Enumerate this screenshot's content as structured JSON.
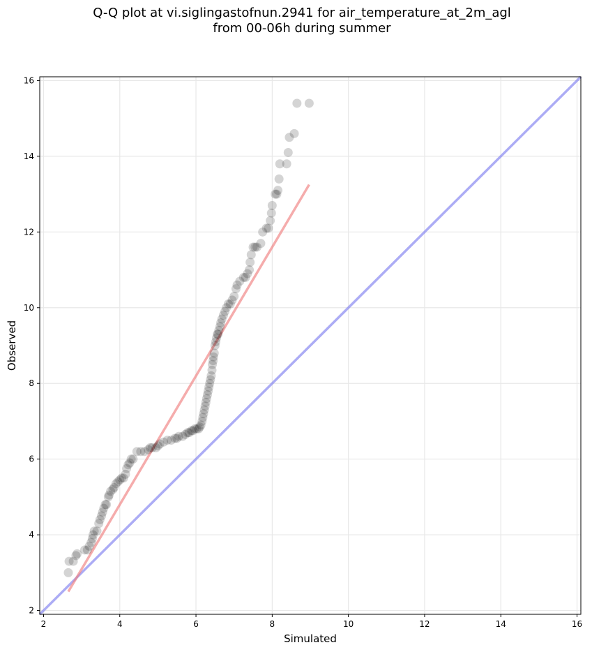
{
  "chart_data": {
    "type": "scatter",
    "title_line1": "Q-Q plot at vi.siglingastofnun.2941 for air_temperature_at_2m_agl",
    "title_line2": "from 00-06h during summer",
    "xlabel": "Simulated",
    "ylabel": "Observed",
    "xlim": [
      1.9,
      16.1
    ],
    "ylim": [
      1.9,
      16.1
    ],
    "xticks": [
      2,
      4,
      6,
      8,
      10,
      12,
      14,
      16
    ],
    "yticks": [
      2,
      4,
      6,
      8,
      10,
      12,
      14,
      16
    ],
    "x_tick_labels": [
      "2",
      "4",
      "6",
      "8",
      "10",
      "12",
      "14",
      "16"
    ],
    "y_tick_labels": [
      "2",
      "4",
      "6",
      "8",
      "10",
      "12",
      "14",
      "16"
    ],
    "grid": true,
    "colors": {
      "points": "#000000",
      "fit_line": "#f08080",
      "identity_line": "#8080f0",
      "grid": "#e8e8e8"
    },
    "fit_line": {
      "x": [
        2.65,
        8.97
      ],
      "y": [
        2.5,
        13.25
      ]
    },
    "identity_line": {
      "x": [
        1.9,
        16.1
      ],
      "y": [
        1.9,
        16.1
      ]
    },
    "points": [
      [
        2.65,
        3.0
      ],
      [
        2.67,
        3.3
      ],
      [
        2.78,
        3.3
      ],
      [
        2.85,
        3.45
      ],
      [
        2.88,
        3.5
      ],
      [
        3.08,
        3.6
      ],
      [
        3.15,
        3.6
      ],
      [
        3.2,
        3.7
      ],
      [
        3.25,
        3.8
      ],
      [
        3.28,
        3.9
      ],
      [
        3.3,
        4.0
      ],
      [
        3.33,
        4.1
      ],
      [
        3.4,
        4.1
      ],
      [
        3.45,
        4.3
      ],
      [
        3.48,
        4.4
      ],
      [
        3.52,
        4.5
      ],
      [
        3.55,
        4.6
      ],
      [
        3.58,
        4.7
      ],
      [
        3.62,
        4.8
      ],
      [
        3.65,
        4.8
      ],
      [
        3.7,
        5.0
      ],
      [
        3.72,
        5.05
      ],
      [
        3.76,
        5.15
      ],
      [
        3.82,
        5.2
      ],
      [
        3.85,
        5.25
      ],
      [
        3.9,
        5.35
      ],
      [
        3.95,
        5.4
      ],
      [
        4.0,
        5.45
      ],
      [
        4.05,
        5.5
      ],
      [
        4.1,
        5.5
      ],
      [
        4.15,
        5.6
      ],
      [
        4.18,
        5.75
      ],
      [
        4.22,
        5.85
      ],
      [
        4.26,
        5.9
      ],
      [
        4.3,
        6.0
      ],
      [
        4.35,
        6.0
      ],
      [
        4.45,
        6.2
      ],
      [
        4.55,
        6.2
      ],
      [
        4.65,
        6.2
      ],
      [
        4.75,
        6.25
      ],
      [
        4.8,
        6.3
      ],
      [
        4.85,
        6.3
      ],
      [
        4.95,
        6.3
      ],
      [
        5.0,
        6.35
      ],
      [
        5.05,
        6.4
      ],
      [
        5.15,
        6.45
      ],
      [
        5.25,
        6.5
      ],
      [
        5.35,
        6.5
      ],
      [
        5.45,
        6.55
      ],
      [
        5.5,
        6.55
      ],
      [
        5.55,
        6.6
      ],
      [
        5.65,
        6.6
      ],
      [
        5.72,
        6.65
      ],
      [
        5.78,
        6.7
      ],
      [
        5.82,
        6.7
      ],
      [
        5.88,
        6.75
      ],
      [
        5.92,
        6.75
      ],
      [
        5.97,
        6.8
      ],
      [
        6.02,
        6.8
      ],
      [
        6.07,
        6.8
      ],
      [
        6.1,
        6.85
      ],
      [
        6.13,
        6.9
      ],
      [
        6.16,
        7.0
      ],
      [
        6.18,
        7.1
      ],
      [
        6.2,
        7.2
      ],
      [
        6.22,
        7.3
      ],
      [
        6.24,
        7.4
      ],
      [
        6.26,
        7.5
      ],
      [
        6.28,
        7.6
      ],
      [
        6.3,
        7.7
      ],
      [
        6.32,
        7.8
      ],
      [
        6.34,
        7.9
      ],
      [
        6.36,
        8.0
      ],
      [
        6.38,
        8.1
      ],
      [
        6.4,
        8.2
      ],
      [
        6.42,
        8.35
      ],
      [
        6.43,
        8.5
      ],
      [
        6.45,
        8.6
      ],
      [
        6.46,
        8.7
      ],
      [
        6.48,
        8.8
      ],
      [
        6.5,
        9.0
      ],
      [
        6.52,
        9.1
      ],
      [
        6.54,
        9.2
      ],
      [
        6.56,
        9.3
      ],
      [
        6.58,
        9.3
      ],
      [
        6.6,
        9.4
      ],
      [
        6.63,
        9.5
      ],
      [
        6.65,
        9.6
      ],
      [
        6.68,
        9.7
      ],
      [
        6.72,
        9.8
      ],
      [
        6.76,
        9.9
      ],
      [
        6.8,
        10.0
      ],
      [
        6.85,
        10.1
      ],
      [
        6.9,
        10.1
      ],
      [
        6.95,
        10.2
      ],
      [
        7.0,
        10.3
      ],
      [
        7.05,
        10.5
      ],
      [
        7.08,
        10.6
      ],
      [
        7.15,
        10.7
      ],
      [
        7.25,
        10.8
      ],
      [
        7.3,
        10.8
      ],
      [
        7.35,
        10.9
      ],
      [
        7.4,
        11.0
      ],
      [
        7.42,
        11.2
      ],
      [
        7.45,
        11.4
      ],
      [
        7.5,
        11.6
      ],
      [
        7.55,
        11.6
      ],
      [
        7.6,
        11.6
      ],
      [
        7.7,
        11.7
      ],
      [
        7.75,
        12.0
      ],
      [
        7.85,
        12.1
      ],
      [
        7.9,
        12.1
      ],
      [
        7.95,
        12.3
      ],
      [
        7.98,
        12.5
      ],
      [
        8.0,
        12.7
      ],
      [
        8.08,
        13.0
      ],
      [
        8.12,
        13.0
      ],
      [
        8.15,
        13.1
      ],
      [
        8.18,
        13.4
      ],
      [
        8.2,
        13.8
      ],
      [
        8.38,
        13.8
      ],
      [
        8.42,
        14.1
      ],
      [
        8.45,
        14.5
      ],
      [
        8.58,
        14.6
      ],
      [
        8.65,
        15.4
      ],
      [
        8.97,
        15.4
      ]
    ]
  }
}
